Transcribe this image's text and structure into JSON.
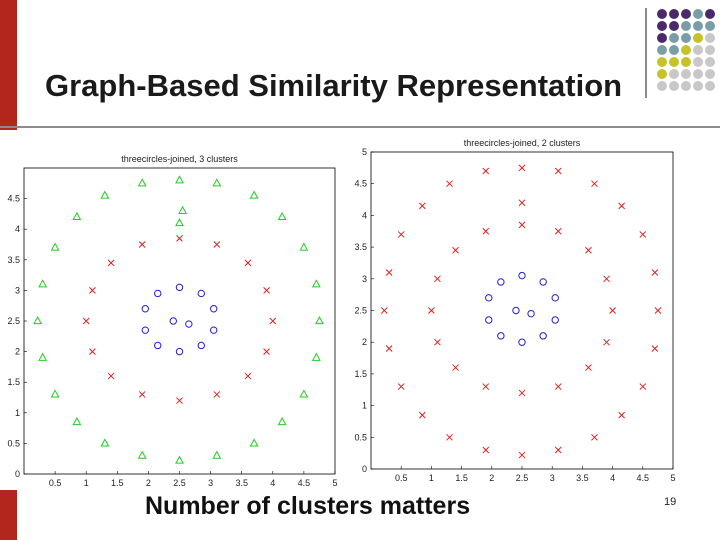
{
  "slide": {
    "title": "Graph-Based Similarity Representation",
    "subtitle": "Number of clusters matters",
    "page_number": "19"
  },
  "decor": {
    "accent_red": "#b3261e",
    "dot_colors": [
      "#4b2a6b",
      "#4b2a6b",
      "#4b2a6b",
      "#7a9ea8",
      "#c8c229",
      "#c8c8c8"
    ]
  },
  "chart_data": [
    {
      "type": "scatter",
      "title": "threecircles-joined, 3 clusters",
      "xlabel": "",
      "ylabel": "",
      "xlim": [
        0,
        5
      ],
      "ylim": [
        0,
        5
      ],
      "xticks": [
        0.5,
        1,
        1.5,
        2,
        2.5,
        3,
        3.5,
        4,
        4.5,
        5
      ],
      "yticks": [
        0,
        0.5,
        1,
        1.5,
        2,
        2.5,
        3,
        3.5,
        4,
        4.5
      ],
      "grid": false,
      "series": [
        {
          "marker": "triangle",
          "color": "#22cc22",
          "points": [
            [
              2.5,
              4.8
            ],
            [
              3.1,
              4.75
            ],
            [
              3.7,
              4.55
            ],
            [
              4.15,
              4.2
            ],
            [
              4.5,
              3.7
            ],
            [
              4.7,
              3.1
            ],
            [
              4.75,
              2.5
            ],
            [
              4.7,
              1.9
            ],
            [
              4.5,
              1.3
            ],
            [
              4.15,
              0.85
            ],
            [
              3.7,
              0.5
            ],
            [
              3.1,
              0.3
            ],
            [
              2.5,
              0.22
            ],
            [
              1.9,
              0.3
            ],
            [
              1.3,
              0.5
            ],
            [
              0.85,
              0.85
            ],
            [
              0.5,
              1.3
            ],
            [
              0.3,
              1.9
            ],
            [
              0.22,
              2.5
            ],
            [
              0.3,
              3.1
            ],
            [
              0.5,
              3.7
            ],
            [
              0.85,
              4.2
            ],
            [
              1.3,
              4.55
            ],
            [
              1.9,
              4.75
            ],
            [
              2.5,
              4.1
            ],
            [
              2.55,
              4.3
            ]
          ]
        },
        {
          "marker": "x",
          "color": "#e02020",
          "points": [
            [
              2.5,
              3.85
            ],
            [
              3.1,
              3.75
            ],
            [
              3.6,
              3.45
            ],
            [
              3.9,
              3.0
            ],
            [
              4.0,
              2.5
            ],
            [
              3.9,
              2.0
            ],
            [
              3.6,
              1.6
            ],
            [
              3.1,
              1.3
            ],
            [
              2.5,
              1.2
            ],
            [
              1.9,
              1.3
            ],
            [
              1.4,
              1.6
            ],
            [
              1.1,
              2.0
            ],
            [
              1.0,
              2.5
            ],
            [
              1.1,
              3.0
            ],
            [
              1.4,
              3.45
            ],
            [
              1.9,
              3.75
            ]
          ]
        },
        {
          "marker": "circle",
          "color": "#2020d0",
          "points": [
            [
              2.5,
              3.05
            ],
            [
              2.85,
              2.95
            ],
            [
              3.05,
              2.7
            ],
            [
              3.05,
              2.35
            ],
            [
              2.85,
              2.1
            ],
            [
              2.5,
              2.0
            ],
            [
              2.15,
              2.1
            ],
            [
              1.95,
              2.35
            ],
            [
              1.95,
              2.7
            ],
            [
              2.15,
              2.95
            ],
            [
              2.4,
              2.5
            ],
            [
              2.65,
              2.45
            ]
          ]
        }
      ]
    },
    {
      "type": "scatter",
      "title": "threecircles-joined, 2 clusters",
      "xlabel": "",
      "ylabel": "",
      "xlim": [
        0,
        5
      ],
      "ylim": [
        0,
        5
      ],
      "xticks": [
        0.5,
        1,
        1.5,
        2,
        2.5,
        3,
        3.5,
        4,
        4.5,
        5
      ],
      "yticks": [
        0,
        0.5,
        1,
        1.5,
        2,
        2.5,
        3,
        3.5,
        4,
        4.5,
        5
      ],
      "grid": false,
      "series": [
        {
          "marker": "x",
          "color": "#e02020",
          "points": [
            [
              2.5,
              4.75
            ],
            [
              3.1,
              4.7
            ],
            [
              3.7,
              4.5
            ],
            [
              4.15,
              4.15
            ],
            [
              4.5,
              3.7
            ],
            [
              4.7,
              3.1
            ],
            [
              4.75,
              2.5
            ],
            [
              4.7,
              1.9
            ],
            [
              4.5,
              1.3
            ],
            [
              4.15,
              0.85
            ],
            [
              3.7,
              0.5
            ],
            [
              3.1,
              0.3
            ],
            [
              2.5,
              0.22
            ],
            [
              1.9,
              0.3
            ],
            [
              1.3,
              0.5
            ],
            [
              0.85,
              0.85
            ],
            [
              0.5,
              1.3
            ],
            [
              0.3,
              1.9
            ],
            [
              0.22,
              2.5
            ],
            [
              0.3,
              3.1
            ],
            [
              0.5,
              3.7
            ],
            [
              0.85,
              4.15
            ],
            [
              1.3,
              4.5
            ],
            [
              1.9,
              4.7
            ],
            [
              2.5,
              3.85
            ],
            [
              3.1,
              3.75
            ],
            [
              3.6,
              3.45
            ],
            [
              3.9,
              3.0
            ],
            [
              4.0,
              2.5
            ],
            [
              3.9,
              2.0
            ],
            [
              3.6,
              1.6
            ],
            [
              3.1,
              1.3
            ],
            [
              2.5,
              1.2
            ],
            [
              1.9,
              1.3
            ],
            [
              1.4,
              1.6
            ],
            [
              1.1,
              2.0
            ],
            [
              1.0,
              2.5
            ],
            [
              1.1,
              3.0
            ],
            [
              1.4,
              3.45
            ],
            [
              1.9,
              3.75
            ],
            [
              2.5,
              4.2
            ]
          ]
        },
        {
          "marker": "circle",
          "color": "#2020d0",
          "points": [
            [
              2.5,
              3.05
            ],
            [
              2.85,
              2.95
            ],
            [
              3.05,
              2.7
            ],
            [
              3.05,
              2.35
            ],
            [
              2.85,
              2.1
            ],
            [
              2.5,
              2.0
            ],
            [
              2.15,
              2.1
            ],
            [
              1.95,
              2.35
            ],
            [
              1.95,
              2.7
            ],
            [
              2.15,
              2.95
            ],
            [
              2.4,
              2.5
            ],
            [
              2.65,
              2.45
            ]
          ]
        }
      ]
    }
  ]
}
